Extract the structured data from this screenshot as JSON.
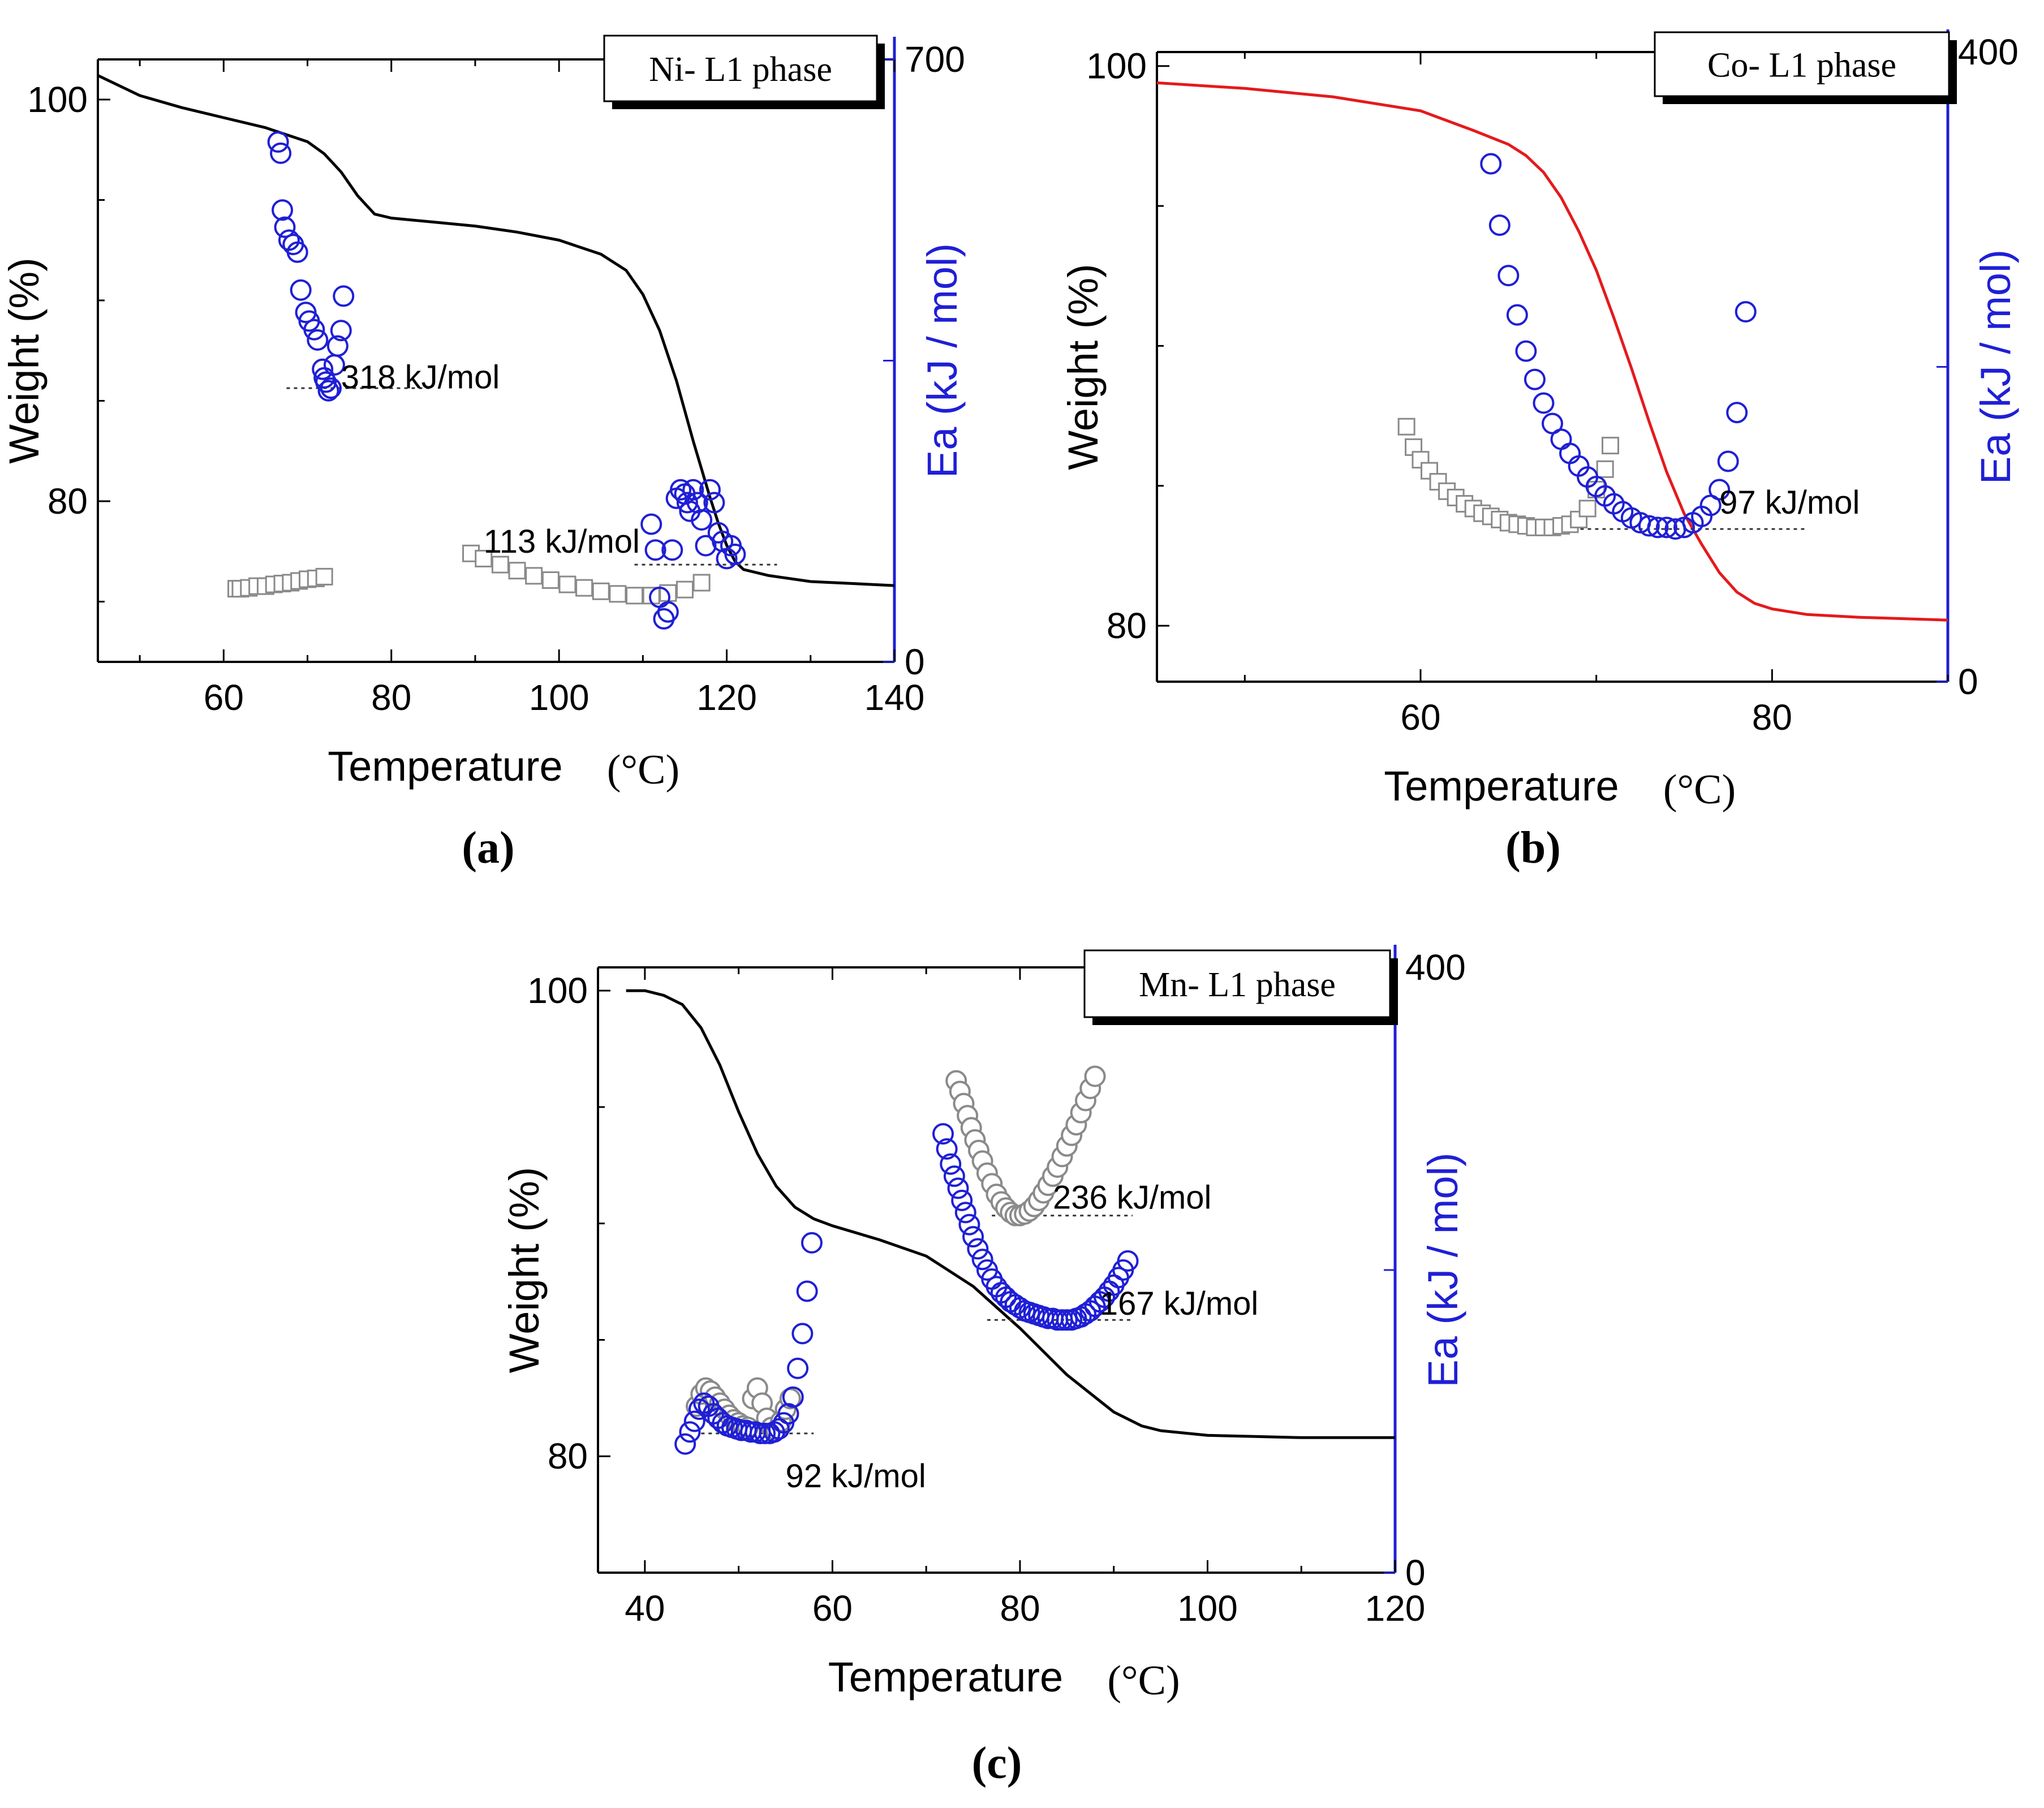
{
  "figure": {
    "panels": [
      {
        "id": "a",
        "label": "a"
      },
      {
        "id": "b",
        "label": "b"
      },
      {
        "id": "c",
        "label": "c"
      }
    ]
  },
  "chart_data": [
    {
      "id": "a",
      "type": "line",
      "legend": "Ni- L1 phase",
      "legend_position": "top-right",
      "xlabel": "Temperature",
      "xunit": "(°C)",
      "ylabel": "Weight (%)",
      "y2label": "Ea (kJ / mol)",
      "xlim": [
        45,
        140
      ],
      "ylim": [
        72,
        102
      ],
      "y2lim": [
        0,
        700
      ],
      "xticks": [
        60,
        80,
        100,
        120,
        140
      ],
      "yticks": [
        80,
        100
      ],
      "y2ticks": [
        0,
        700
      ],
      "grid": false,
      "weight_curve": {
        "color": "#000000",
        "x": [
          45,
          50,
          55,
          60,
          65,
          70,
          72,
          74,
          76,
          78,
          80,
          85,
          90,
          95,
          100,
          105,
          108,
          110,
          112,
          114,
          116,
          118,
          119,
          120,
          121,
          122,
          125,
          130,
          135,
          140
        ],
        "y": [
          101.2,
          100.2,
          99.6,
          99.1,
          98.6,
          97.9,
          97.3,
          96.4,
          95.2,
          94.3,
          94.1,
          93.9,
          93.7,
          93.4,
          93.0,
          92.3,
          91.5,
          90.3,
          88.5,
          86.0,
          83.0,
          80.2,
          78.9,
          77.8,
          77.0,
          76.6,
          76.3,
          76.0,
          75.9,
          75.8
        ]
      },
      "ea_open_circles": [
        {
          "x": [
            66.5,
            66.8,
            67.0,
            67.3,
            67.8,
            68.3,
            68.8,
            69.2,
            69.8,
            70.2,
            70.8,
            71.2,
            71.8,
            72.0,
            72.2,
            72.5,
            72.8,
            73.2,
            73.6,
            74.0,
            74.3
          ],
          "y": [
            604,
            591,
            525,
            505,
            490,
            485,
            476,
            432,
            406,
            396,
            386,
            374,
            340,
            330,
            325,
            315,
            318,
            345,
            367,
            385,
            425
          ]
        },
        {
          "x": [
            111.0,
            111.5,
            112.0,
            112.5,
            113.0,
            113.5,
            114.0,
            114.5,
            115.0,
            115.3,
            115.6,
            116.0,
            116.5,
            117.0,
            117.5,
            118.0,
            118.5,
            119.0,
            119.5,
            120.0,
            120.5,
            121.0
          ],
          "y": [
            160,
            130,
            75,
            50,
            58,
            130,
            190,
            200,
            195,
            185,
            175,
            200,
            185,
            165,
            135,
            200,
            185,
            150,
            140,
            120,
            135,
            125
          ]
        }
      ],
      "ea_gray_squares": [
        {
          "x": [
            61.5,
            62,
            63,
            64,
            65,
            66,
            67,
            68,
            69,
            70,
            71,
            72
          ],
          "y": [
            85,
            85,
            86,
            88,
            88,
            90,
            91,
            92,
            94,
            96,
            97,
            99
          ]
        },
        {
          "x": [
            89.5,
            91,
            93,
            95,
            97,
            99,
            101,
            103,
            105,
            107,
            109,
            111,
            113,
            115,
            117
          ],
          "y": [
            126,
            120,
            113,
            106,
            100,
            95,
            90,
            86,
            82,
            79,
            77,
            77,
            80,
            84,
            92
          ]
        }
      ],
      "annotations": [
        {
          "text": "318 kJ/mol",
          "x": 74,
          "y": 331,
          "line_x": [
            67.5,
            85
          ],
          "line_y": 318
        },
        {
          "text": "113 kJ/mol",
          "x": 91,
          "y": 140,
          "line_x": [
            109,
            126
          ],
          "line_y": 113
        }
      ]
    },
    {
      "id": "b",
      "type": "line",
      "legend": "Co- L1 phase",
      "legend_position": "top-right",
      "xlabel": "Temperature",
      "xunit": "(°C)",
      "ylabel": "Weight (%)",
      "y2label": "Ea (kJ / mol)",
      "xlim": [
        45,
        90
      ],
      "ylim": [
        78,
        100.5
      ],
      "y2lim": [
        0,
        400
      ],
      "xticks": [
        60,
        80
      ],
      "yticks": [
        80,
        100
      ],
      "y2ticks": [
        0,
        400
      ],
      "grid": false,
      "weight_curve": {
        "color": "#e41a1c",
        "x": [
          45,
          50,
          55,
          60,
          63,
          65,
          66,
          67,
          68,
          69,
          70,
          71,
          72,
          73,
          74,
          75,
          76,
          77,
          78,
          79,
          80,
          82,
          85,
          90
        ],
        "y": [
          99.4,
          99.2,
          98.9,
          98.4,
          97.7,
          97.2,
          96.8,
          96.2,
          95.3,
          94.1,
          92.7,
          91.0,
          89.2,
          87.3,
          85.5,
          84.0,
          82.9,
          81.9,
          81.2,
          80.8,
          80.6,
          80.4,
          80.3,
          80.2
        ]
      },
      "ea_open_circles": [
        {
          "x": [
            64.0,
            64.5,
            65.0,
            65.5,
            66.0,
            66.5,
            67.0,
            67.5,
            68.0,
            68.5,
            69.0,
            69.5,
            70.0,
            70.5,
            71.0,
            71.5,
            72.0,
            72.5,
            73.0,
            73.5,
            74.0,
            74.5,
            75.0,
            75.5,
            76.0,
            76.5,
            77.0,
            77.5,
            78.0,
            78.5
          ],
          "y": [
            329,
            290,
            258,
            233,
            210,
            192,
            177,
            164,
            154,
            145,
            137,
            130,
            124,
            118,
            113,
            108,
            104,
            101,
            99,
            98,
            98,
            97,
            98,
            101,
            105,
            112,
            122,
            140,
            171,
            235
          ]
        }
      ],
      "ea_gray_squares": [
        {
          "x": [
            59.2,
            59.6,
            60.0,
            60.5,
            61.0,
            61.5,
            62.0,
            62.5,
            63.0,
            63.5,
            64.0,
            64.5,
            65.0,
            65.5,
            66.0,
            66.5,
            67.0,
            67.5,
            68.0,
            68.5,
            69.0,
            69.5,
            70.0,
            70.5,
            70.8
          ],
          "y": [
            162,
            149,
            141,
            134,
            127,
            121,
            117,
            113,
            110,
            107,
            105,
            103,
            101,
            100,
            99,
            98,
            98,
            98,
            99,
            100,
            103,
            110,
            122,
            135,
            150
          ]
        }
      ],
      "annotations": [
        {
          "text": "97 kJ/mol",
          "x": 77,
          "y": 114,
          "line_x": [
            67,
            82
          ],
          "line_y": 97
        }
      ]
    },
    {
      "id": "c",
      "type": "line",
      "legend": "Mn- L1 phase",
      "legend_position": "top-right",
      "xlabel": "Temperature",
      "xunit": "(°C)",
      "ylabel": "Weight (%)",
      "y2label": "Ea (kJ / mol)",
      "xlim": [
        35,
        120
      ],
      "ylim": [
        75,
        101
      ],
      "y2lim": [
        0,
        400
      ],
      "xticks": [
        40,
        60,
        80,
        100,
        120
      ],
      "yticks": [
        80,
        100
      ],
      "y2ticks": [
        0,
        400
      ],
      "grid": false,
      "weight_curve": {
        "color": "#000000",
        "x": [
          38,
          40,
          42,
          44,
          46,
          48,
          50,
          52,
          54,
          56,
          58,
          60,
          65,
          70,
          75,
          80,
          85,
          90,
          93,
          95,
          100,
          105,
          110,
          115,
          120
        ],
        "y": [
          100.0,
          100.0,
          99.8,
          99.4,
          98.4,
          96.8,
          94.8,
          93.0,
          91.6,
          90.7,
          90.2,
          89.9,
          89.3,
          88.6,
          87.3,
          85.5,
          83.5,
          81.9,
          81.3,
          81.1,
          80.9,
          80.85,
          80.8,
          80.8,
          80.8
        ]
      },
      "ea_open_circles": [
        {
          "x": [
            44.3,
            44.8,
            45.3,
            45.8,
            46.3,
            46.8,
            47.3,
            47.8,
            48.3,
            48.8,
            49.3,
            49.8,
            50.3,
            50.8,
            51.3,
            51.8,
            52.3,
            52.8,
            53.3,
            53.8,
            54.3,
            54.8,
            55.3,
            55.8,
            56.3,
            56.8,
            57.3,
            57.8
          ],
          "y": [
            85,
            93,
            100,
            108,
            112,
            110,
            105,
            102,
            99,
            97,
            96,
            95,
            94,
            94,
            93,
            93,
            92,
            92,
            92,
            93,
            95,
            99,
            105,
            116,
            135,
            158,
            186,
            218
          ]
        },
        {
          "x": [
            71.8,
            72.2,
            72.6,
            73.0,
            73.4,
            73.8,
            74.2,
            74.6,
            75.0,
            75.5,
            76.0,
            76.5,
            77.0,
            77.5,
            78.0,
            78.5,
            79.0,
            79.5,
            80.0,
            80.5,
            81.0,
            81.5,
            82.0,
            82.5,
            83.0,
            83.5,
            84.0,
            84.5,
            85.0,
            85.5,
            86.0,
            86.5,
            87.0,
            87.5,
            88.0,
            88.5,
            89.0,
            89.5,
            90.0,
            90.5,
            91.0,
            91.5
          ],
          "y": [
            290,
            280,
            270,
            262,
            254,
            246,
            238,
            230,
            222,
            214,
            207,
            200,
            194,
            189,
            185,
            182,
            179,
            177,
            175,
            173,
            172,
            171,
            170,
            169,
            168,
            168,
            167,
            167,
            167,
            167,
            168,
            169,
            171,
            173,
            176,
            179,
            182,
            186,
            190,
            195,
            200,
            206
          ]
        }
      ],
      "ea_gray_circles": [
        {
          "x": [
            45.5,
            46.0,
            46.5,
            47.0,
            47.5,
            48.0,
            48.5,
            49.0,
            49.5,
            50.0,
            50.5,
            51.0,
            51.5,
            52.0,
            52.5,
            53.0,
            53.5,
            54.0,
            54.5,
            55.0,
            55.5
          ],
          "y": [
            110,
            118,
            122,
            120,
            116,
            112,
            108,
            104,
            101,
            99,
            97,
            96,
            115,
            122,
            112,
            102,
            96,
            94,
            100,
            108,
            115
          ]
        },
        {
          "x": [
            73.2,
            73.6,
            74.0,
            74.4,
            74.8,
            75.2,
            75.6,
            76.0,
            76.5,
            77.0,
            77.5,
            78.0,
            78.5,
            79.0,
            79.5,
            80.0,
            80.5,
            81.0,
            81.5,
            82.0,
            82.5,
            83.0,
            83.5,
            84.0,
            84.5,
            85.0,
            85.5,
            86.0,
            86.5,
            87.0,
            87.5,
            88.0
          ],
          "y": [
            325,
            318,
            310,
            302,
            294,
            286,
            279,
            272,
            264,
            257,
            250,
            245,
            241,
            238,
            236,
            236,
            237,
            239,
            242,
            246,
            251,
            256,
            262,
            268,
            275,
            282,
            289,
            296,
            304,
            312,
            320,
            328
          ]
        }
      ],
      "annotations": [
        {
          "text": "236 kJ/mol",
          "x": 83.5,
          "y": 248,
          "line_x": [
            77,
            92
          ],
          "line_y": 236
        },
        {
          "text": "167 kJ/mol",
          "x": 88.5,
          "y": 178,
          "line_x": [
            76.5,
            92
          ],
          "line_y": 167
        },
        {
          "text": "92 kJ/mol",
          "x": 55,
          "y": 64,
          "line_x": [
            46,
            58
          ],
          "line_y": 92
        }
      ]
    }
  ]
}
